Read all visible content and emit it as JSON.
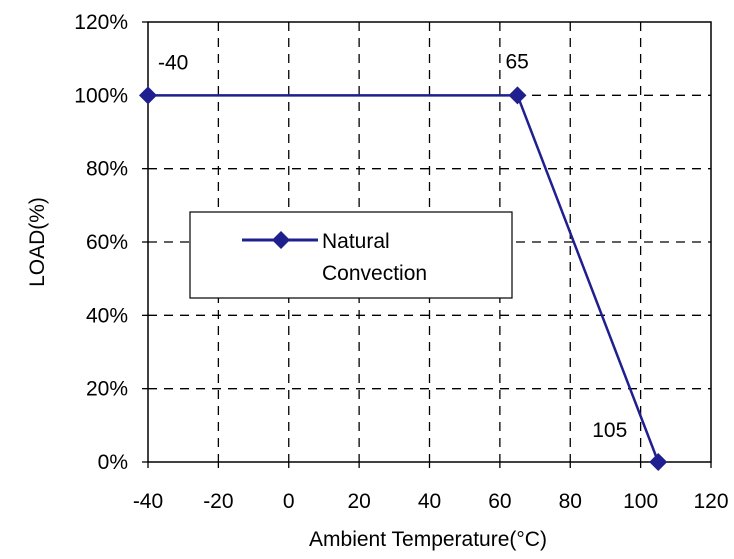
{
  "chart_data": {
    "type": "line",
    "title": "",
    "xlabel": "Ambient Temperature(°C)",
    "ylabel": "LOAD(%)",
    "xlim": [
      -40,
      120
    ],
    "ylim": [
      0,
      120
    ],
    "x_ticks": [
      -40,
      -20,
      0,
      20,
      40,
      60,
      80,
      100,
      120
    ],
    "x_tick_labels": [
      "-40",
      "-20",
      "0",
      "20",
      "40",
      "60",
      "80",
      "100",
      "120"
    ],
    "y_ticks": [
      0,
      20,
      40,
      60,
      80,
      100,
      120
    ],
    "y_tick_labels": [
      "0%",
      "20%",
      "40%",
      "60%",
      "80%",
      "100%",
      "120%"
    ],
    "grid": true,
    "grid_style": "dashed",
    "legend_position": "center-left",
    "series": [
      {
        "name": "Natural Convection",
        "color": "#1f1f8f",
        "marker": "diamond",
        "points": [
          {
            "x": -40,
            "y": 100
          },
          {
            "x": 65,
            "y": 100
          },
          {
            "x": 105,
            "y": 0
          }
        ]
      }
    ],
    "annotations": [
      {
        "text": "-40",
        "x": -40,
        "y": 100
      },
      {
        "text": "65",
        "x": 65,
        "y": 100
      },
      {
        "text": "105",
        "x": 105,
        "y": 0
      }
    ],
    "legend": {
      "lines": [
        "Natural",
        "Convection"
      ]
    }
  }
}
